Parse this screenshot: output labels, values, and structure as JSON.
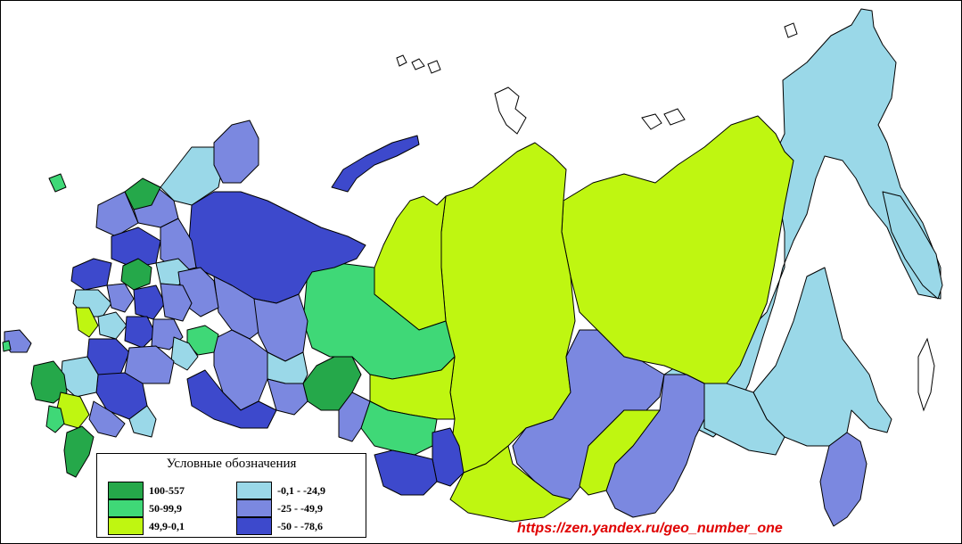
{
  "legend": {
    "title": "Условные обозначения",
    "items": [
      {
        "label": "100-557",
        "color": "#25a84a"
      },
      {
        "label": "50-99,9",
        "color": "#3fd877"
      },
      {
        "label": "49,9-0,1",
        "color": "#bff611"
      },
      {
        "label": "-0,1 - -24,9",
        "color": "#9ad8e8"
      },
      {
        "label": "-25 - -49,9",
        "color": "#7b88e0"
      },
      {
        "label": "-50 - -78,6",
        "color": "#3d49cc"
      }
    ]
  },
  "source": {
    "text": "https://zen.yandex.ru/geo_number_one"
  }
}
